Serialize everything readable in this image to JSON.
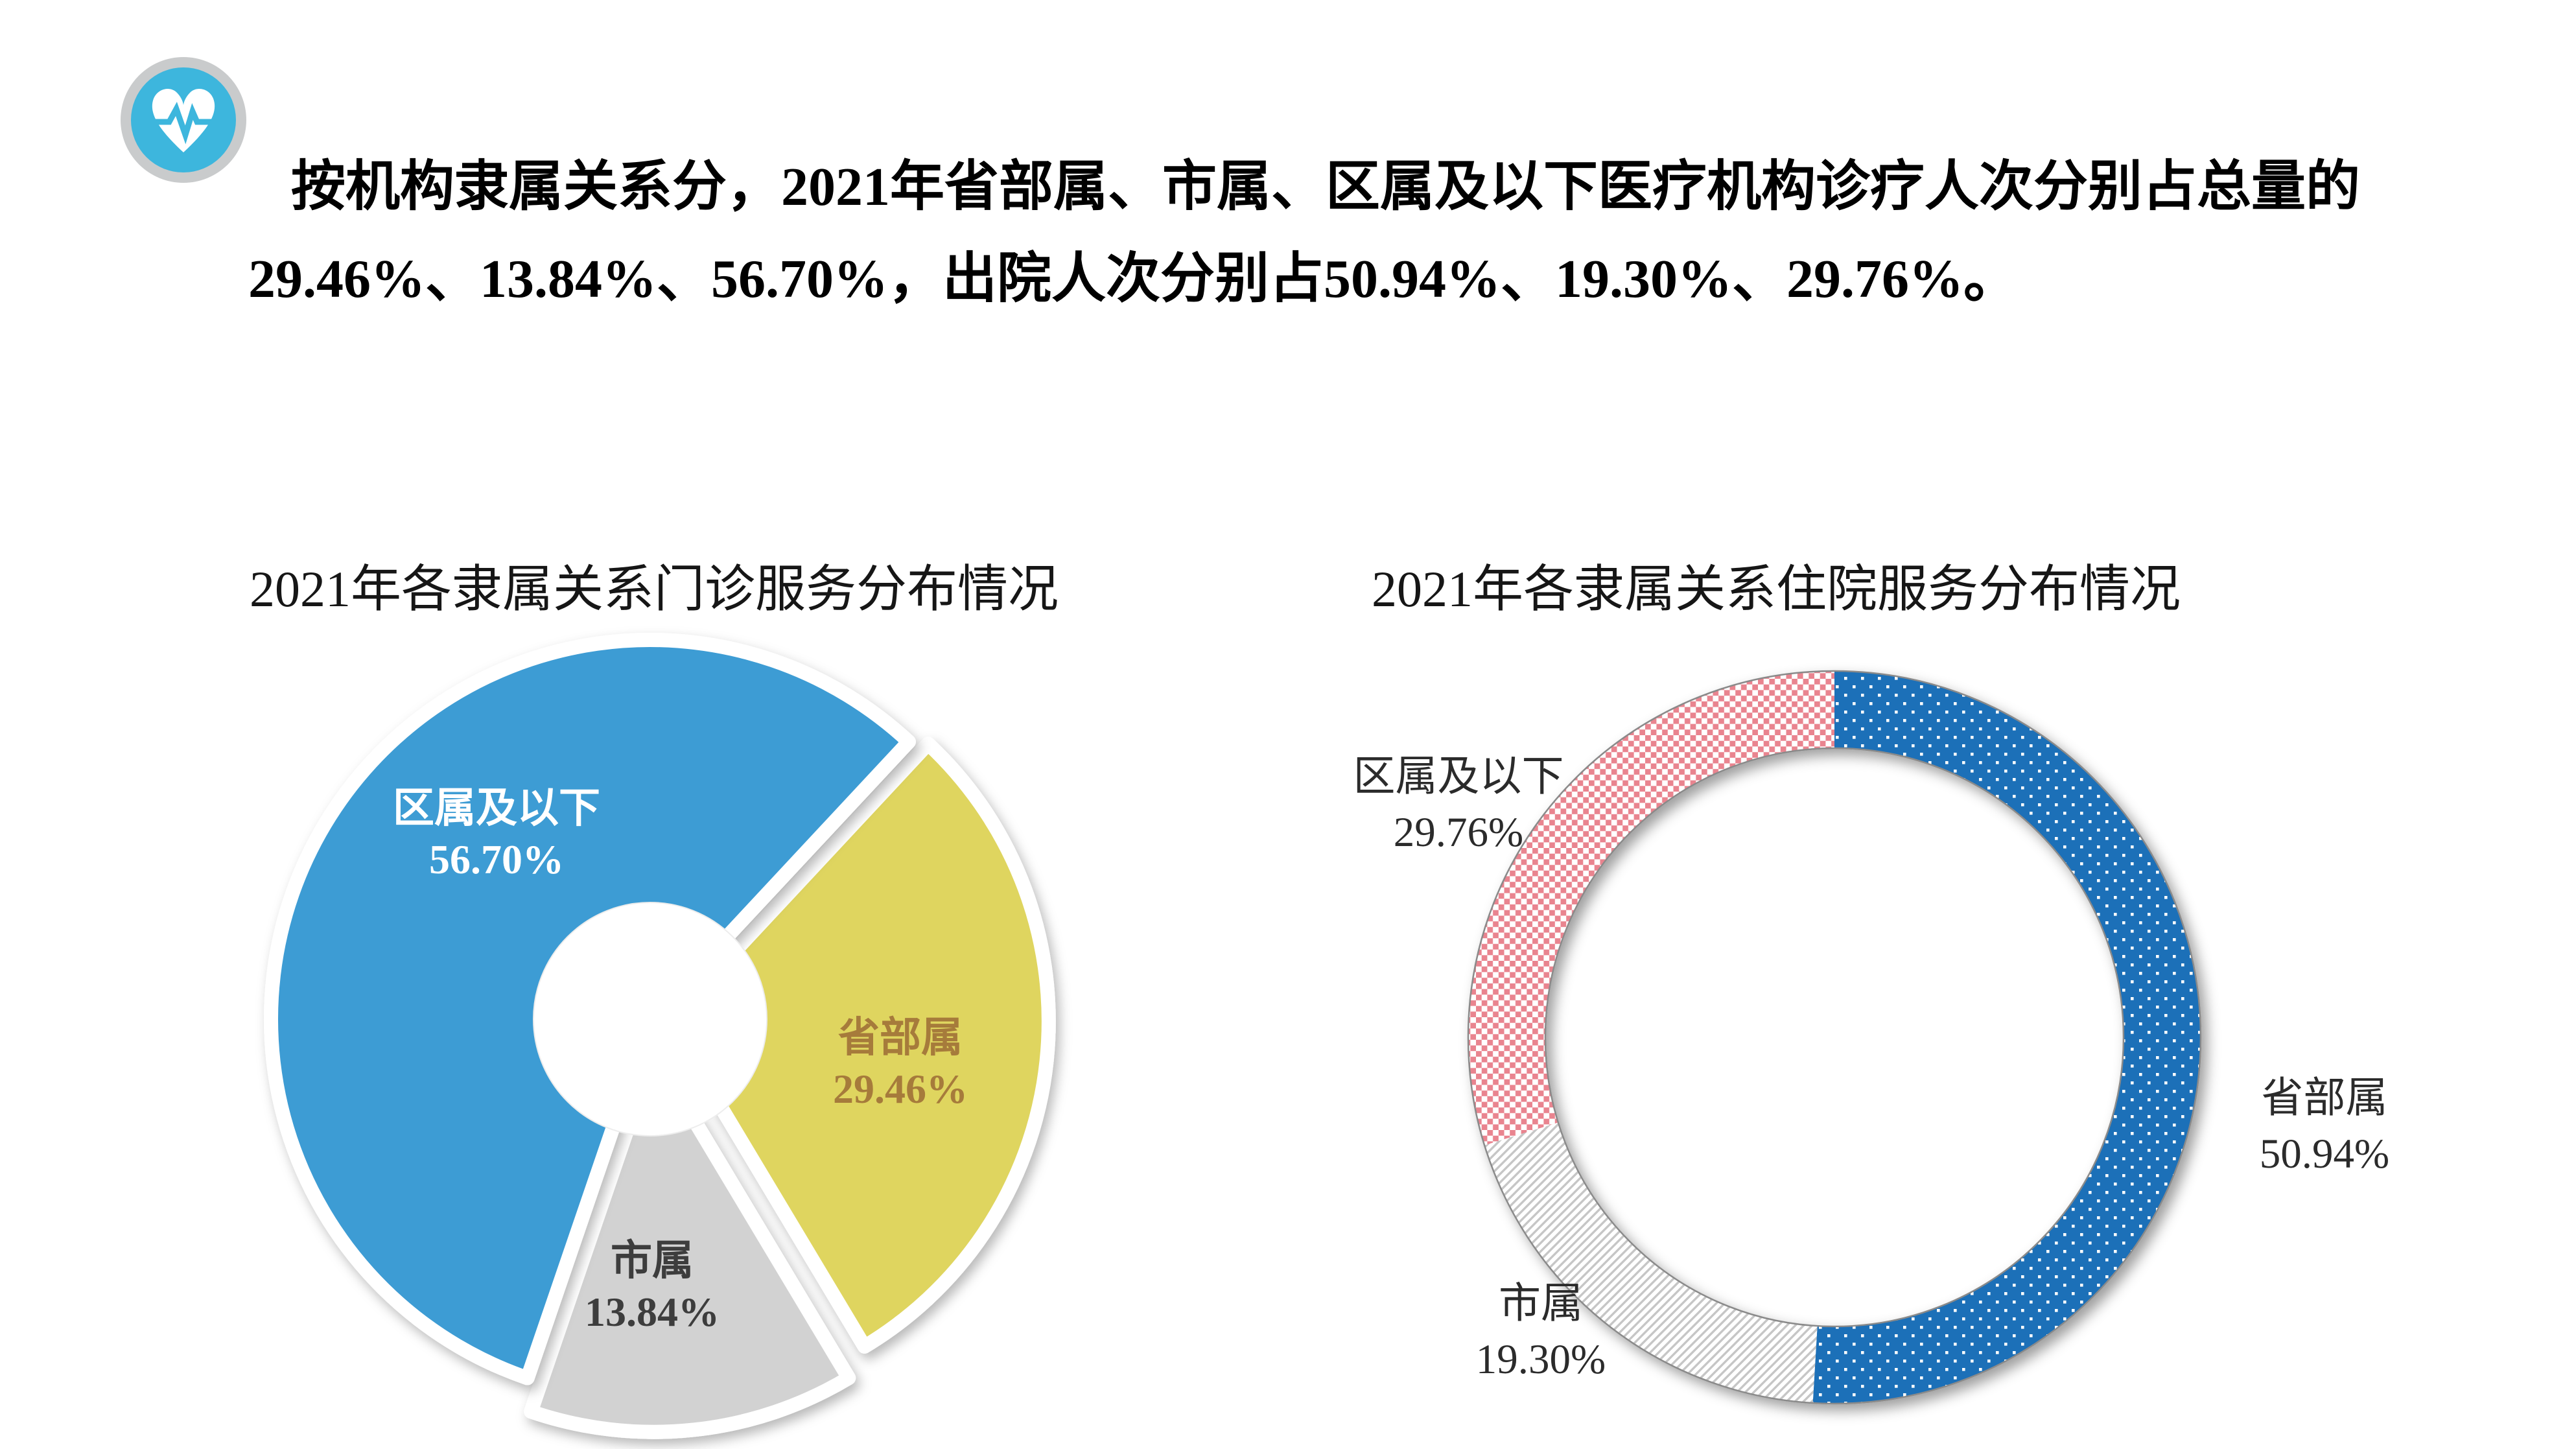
{
  "page": {
    "background": "#ffffff"
  },
  "header": {
    "icon": "heartbeat-icon",
    "line1": "按机构隶属关系分，2021年省部属、市属、区属及以下医疗机构诊疗人次分别占总量的",
    "line2": "29.46%、13.84%、56.70%，出院人次分别占50.94%、19.30%、29.76%。"
  },
  "icon_colors": {
    "ring": "#c9cbcc",
    "circle": "#3db6dd",
    "heart": "#ffffff"
  },
  "chart_data": [
    {
      "type": "pie",
      "subtype": "exploded-donut",
      "title": "2021年各隶属关系门诊服务分布情况",
      "categories": [
        "省部属",
        "市属",
        "区属及以下"
      ],
      "values": [
        29.46,
        13.84,
        56.7
      ],
      "unit": "%",
      "slice_colors": [
        "#dfd55e",
        "#d2d2d2",
        "#3e9cd4"
      ],
      "label_colors": [
        "#a67b3b",
        "#3d3d3d",
        "#ffffff"
      ],
      "label_position": "inside",
      "start_angle_deg": 43,
      "clockwise": true,
      "legend": "none"
    },
    {
      "type": "pie",
      "subtype": "ring",
      "title": "2021年各隶属关系住院服务分布情况",
      "categories": [
        "省部属",
        "市属",
        "区属及以下"
      ],
      "values": [
        50.94,
        19.3,
        29.76
      ],
      "unit": "%",
      "patterns": [
        "white-dots-on-blue",
        "gray-diagonal-stripes",
        "pink-checkerboard"
      ],
      "pattern_colors": {
        "blue": "#1f70b8",
        "stripe_gray": "#c6c6c6",
        "pink": "#e9848f",
        "background": "#ffffff",
        "edge": "#8a8a8a"
      },
      "label_colors": [
        "#2b2b2b",
        "#2b2b2b",
        "#2b2b2b"
      ],
      "label_position": "outside",
      "start_angle_deg": 0,
      "clockwise": true,
      "legend": "none"
    }
  ]
}
